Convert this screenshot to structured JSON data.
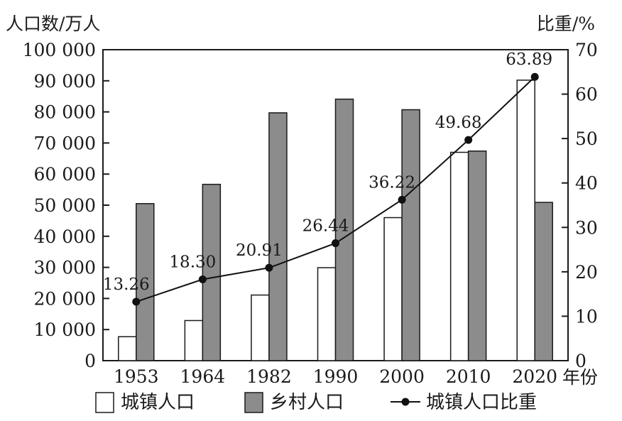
{
  "chart_data": {
    "type": "bar",
    "categories": [
      "1953",
      "1964",
      "1982",
      "1990",
      "2000",
      "2010",
      "2020"
    ],
    "series": [
      {
        "name": "城镇人口",
        "kind": "bar",
        "axis": "left",
        "fill": "#ffffff",
        "values": [
          7700,
          12900,
          21100,
          29900,
          46000,
          67000,
          90200
        ]
      },
      {
        "name": "乡村人口",
        "kind": "bar",
        "axis": "left",
        "fill": "#8c8c8c",
        "values": [
          50500,
          56700,
          79700,
          84100,
          80700,
          67400,
          50900
        ]
      },
      {
        "name": "城镇人口比重",
        "kind": "line",
        "axis": "right",
        "color": "#111111",
        "values": [
          13.26,
          18.3,
          20.91,
          26.44,
          36.22,
          49.68,
          63.89
        ],
        "labels": [
          "13.26",
          "18.30",
          "20.91",
          "26.44",
          "36.22",
          "49.68",
          "63.89"
        ]
      }
    ],
    "ylabel": "人口数/万人",
    "y2label": "比重/%",
    "xlabel": "年份",
    "ylim": [
      0,
      100000
    ],
    "y2lim": [
      0,
      70
    ],
    "yticks": [
      "0",
      "10 000",
      "20 000",
      "30 000",
      "40 000",
      "50 000",
      "60 000",
      "70 000",
      "80 000",
      "90 000",
      "100 000"
    ],
    "y2ticks": [
      "0",
      "10",
      "20",
      "30",
      "40",
      "50",
      "60",
      "70"
    ],
    "grid": false,
    "legend": "bottom"
  }
}
